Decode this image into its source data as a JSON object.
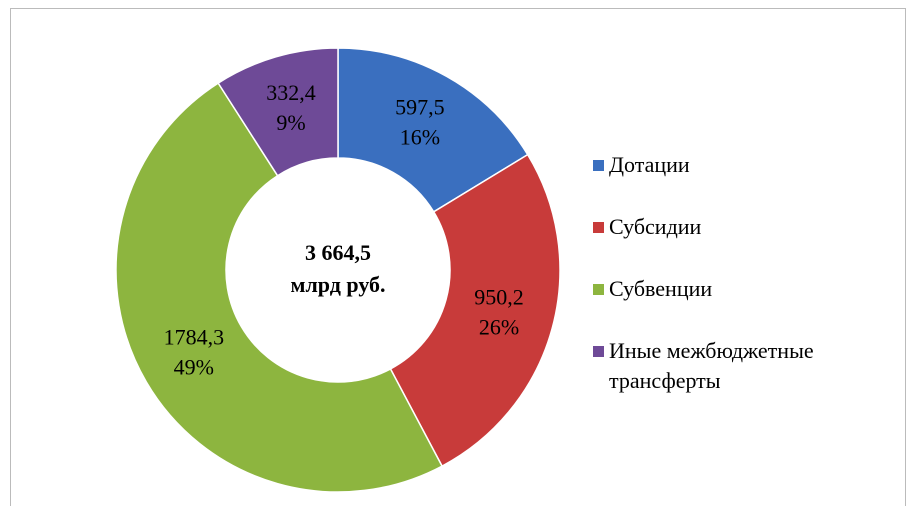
{
  "chart_data": {
    "type": "donut",
    "categories": [
      "Дотации",
      "Субсидии",
      "Субвенции",
      "Иные межбюджетные трансферты"
    ],
    "values": [
      597.5,
      950.2,
      1784.3,
      332.4
    ],
    "value_labels": [
      "597,5",
      "950,2",
      "1784,3",
      "332,4"
    ],
    "percent_labels": [
      "16%",
      "26%",
      "49%",
      "9%"
    ],
    "colors": [
      "#3a6fbf",
      "#c83b3a",
      "#8db53f",
      "#6e4a97"
    ],
    "center_label": [
      "3 664,5",
      "млрд руб."
    ],
    "legend": "right"
  }
}
